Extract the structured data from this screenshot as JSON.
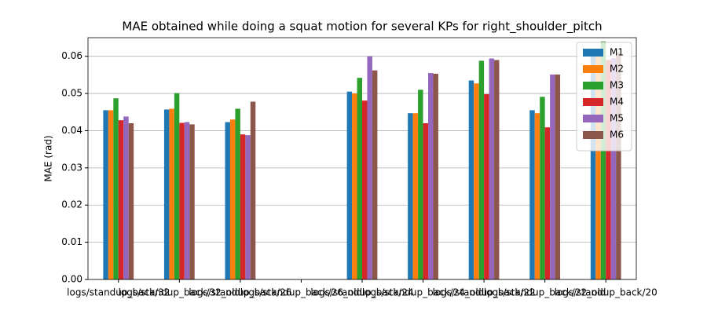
{
  "chart_data": {
    "type": "bar",
    "title": "MAE obtained while doing a squat motion for several KPs for right_shoulder_pitch",
    "ylabel": "MAE (rad)",
    "categories": [
      "logs/standup_back/32",
      "logs/standup_back/32_old",
      "logs/standup_back/26",
      "logs/standup_back/26_old",
      "logs/standup_back/24",
      "logs/standup_back/24_old",
      "logs/standup_back/22",
      "logs/standup_back/22_old",
      "logs/standup_back/20"
    ],
    "series": [
      {
        "name": "M1",
        "color": "#1f77b4",
        "values": [
          0.0455,
          0.0457,
          0.0423,
          null,
          0.0505,
          0.0447,
          0.0535,
          0.0455,
          0.061
        ]
      },
      {
        "name": "M2",
        "color": "#ff7f0e",
        "values": [
          0.0455,
          0.0459,
          0.043,
          null,
          0.05,
          0.0447,
          0.0527,
          0.0447,
          0.06
        ]
      },
      {
        "name": "M3",
        "color": "#2ca02c",
        "values": [
          0.0487,
          0.0501,
          0.0459,
          null,
          0.0542,
          0.051,
          0.0588,
          0.0491,
          0.064
        ]
      },
      {
        "name": "M4",
        "color": "#d62728",
        "values": [
          0.0428,
          0.0421,
          0.039,
          null,
          0.0481,
          0.042,
          0.0498,
          0.0409,
          0.059
        ]
      },
      {
        "name": "M5",
        "color": "#9467bd",
        "values": [
          0.0438,
          0.0423,
          0.0388,
          null,
          0.06,
          0.0555,
          0.0594,
          0.0551,
          0.0595
        ]
      },
      {
        "name": "M6",
        "color": "#8c564b",
        "values": [
          0.042,
          0.0417,
          0.0478,
          null,
          0.0562,
          0.0553,
          0.059,
          0.0551,
          0.061
        ]
      }
    ],
    "ylim": [
      0,
      0.065
    ],
    "yticks": [
      {
        "value": 0,
        "label": "0.00"
      },
      {
        "value": 0.01,
        "label": "0.01"
      },
      {
        "value": 0.02,
        "label": "0.02"
      },
      {
        "value": 0.03,
        "label": "0.03"
      },
      {
        "value": 0.04,
        "label": "0.04"
      },
      {
        "value": 0.05,
        "label": "0.05"
      },
      {
        "value": 0.06,
        "label": "0.06"
      }
    ],
    "grid": true,
    "legend": "upper right"
  }
}
